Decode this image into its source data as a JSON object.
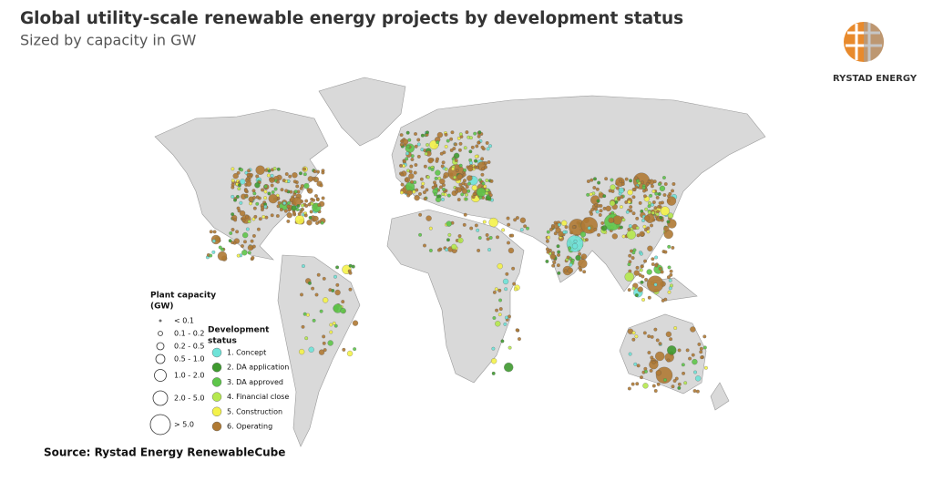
{
  "title": "Global utility-scale renewable energy projects by development status",
  "subtitle": "Sized by capacity in GW",
  "logo": "RYSTAD ENERGY",
  "legend": {
    "capacity_title": [
      "Plant capacity",
      "(GW)"
    ],
    "sizes": [
      "< 0.1",
      "0.1 - 0.2",
      "0.2 - 0.5",
      "0.5 - 1.0",
      "1.0 - 2.0",
      "2.0 - 5.0",
      "> 5.0"
    ],
    "status_title": [
      "Development",
      "status"
    ],
    "statuses": [
      {
        "label": "1. Concept",
        "color": "#6fe3d8"
      },
      {
        "label": "2. DA application",
        "color": "#3f9a2f"
      },
      {
        "label": "3. DA approved",
        "color": "#5ec64a"
      },
      {
        "label": "4. Financial close",
        "color": "#b5e84e"
      },
      {
        "label": "5. Construction",
        "color": "#f4f24a"
      },
      {
        "label": "6. Operating",
        "color": "#b07a34"
      }
    ]
  },
  "source": "Source: Rystad Energy RenewableCube"
}
